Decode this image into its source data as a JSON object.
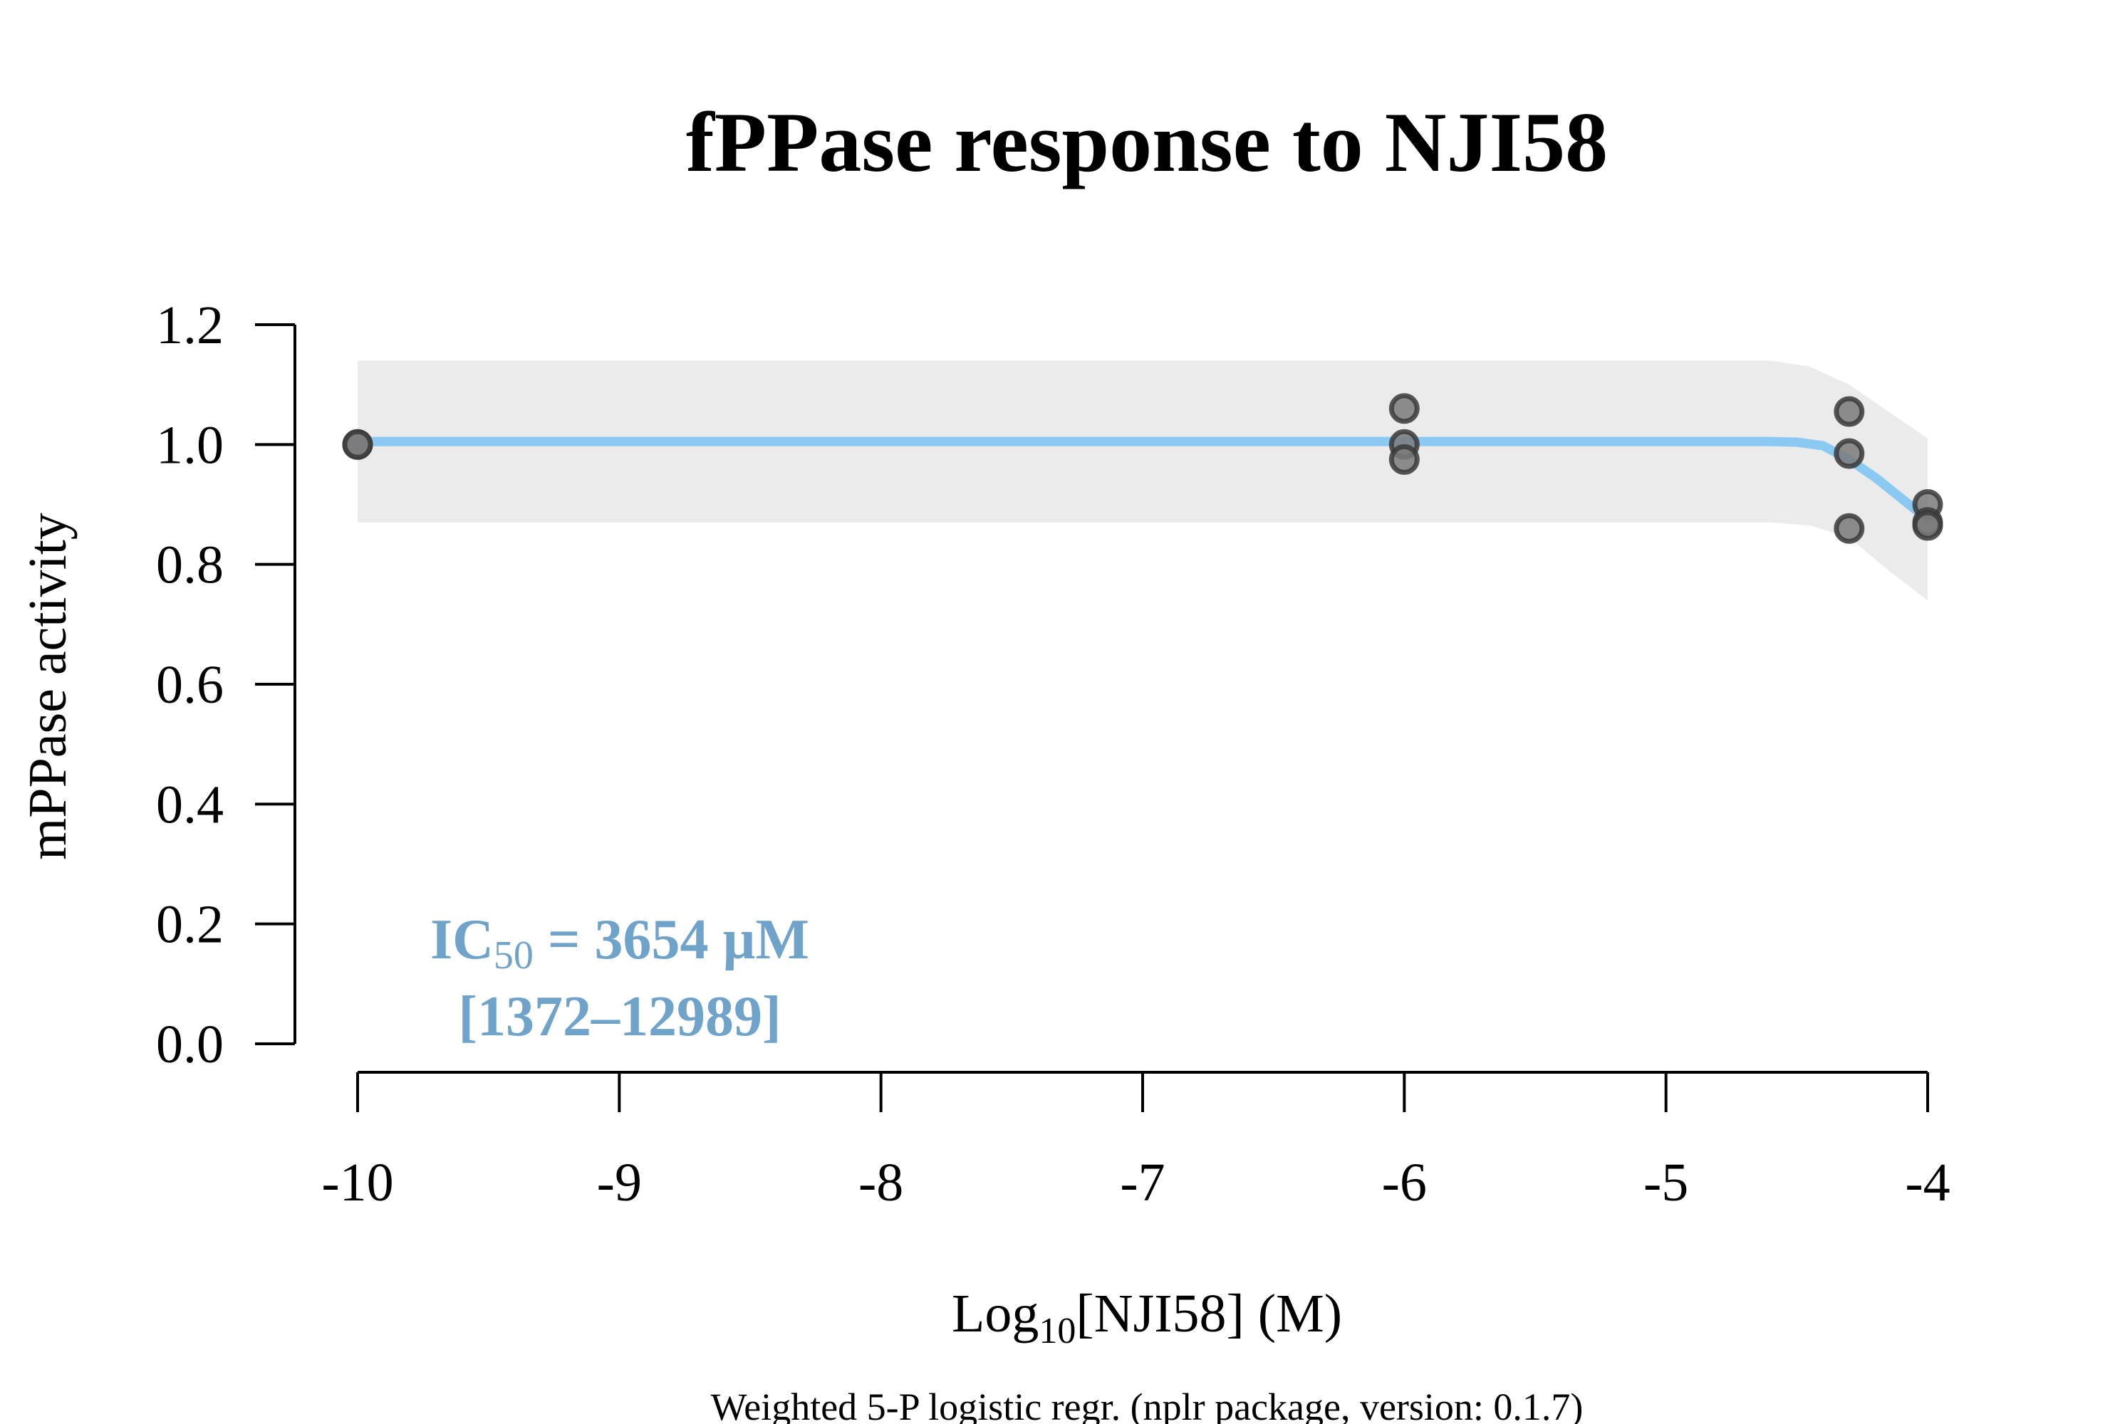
{
  "chart_data": {
    "type": "scatter",
    "title": "fPPase response to NJI58",
    "xlabel": {
      "prefix": "Log",
      "sub": "10",
      "suffix": "[NJI58] (M)"
    },
    "ylabel": "mPPase activity",
    "footnote": "Weighted 5-P logistic regr. (nplr package, version: 0.1.7)",
    "xlim": [
      -10,
      -4
    ],
    "ylim": [
      0,
      1.2
    ],
    "x_ticks": [
      -10,
      -9,
      -8,
      -7,
      -6,
      -5,
      -4
    ],
    "y_ticks": [
      0,
      0.2,
      0.4,
      0.6,
      0.8,
      1.0,
      1.2
    ],
    "x_tick_labels": [
      "-10",
      "-9",
      "-8",
      "-7",
      "-6",
      "-5",
      "-4"
    ],
    "y_tick_labels": [
      "0.0",
      "0.2",
      "0.4",
      "0.6",
      "0.8",
      "1.0",
      "1.2"
    ],
    "points": [
      {
        "x": -10,
        "y": 1.0
      },
      {
        "x": -10,
        "y": 1.0
      },
      {
        "x": -6,
        "y": 1.06
      },
      {
        "x": -6,
        "y": 1.0
      },
      {
        "x": -6,
        "y": 0.975
      },
      {
        "x": -4.3,
        "y": 1.055
      },
      {
        "x": -4.3,
        "y": 0.985
      },
      {
        "x": -4.3,
        "y": 0.86
      },
      {
        "x": -4,
        "y": 0.9
      },
      {
        "x": -4,
        "y": 0.87
      },
      {
        "x": -4,
        "y": 0.865
      }
    ],
    "fit_curve": [
      {
        "x": -10,
        "y": 1.005
      },
      {
        "x": -6,
        "y": 1.005
      },
      {
        "x": -4.6,
        "y": 1.005
      },
      {
        "x": -4.5,
        "y": 1.004
      },
      {
        "x": -4.4,
        "y": 0.998
      },
      {
        "x": -4.3,
        "y": 0.975
      },
      {
        "x": -4.2,
        "y": 0.945
      },
      {
        "x": -4.1,
        "y": 0.91
      },
      {
        "x": -4,
        "y": 0.875
      }
    ],
    "confidence_band": {
      "upper": [
        {
          "x": -10,
          "y": 1.14
        },
        {
          "x": -4.6,
          "y": 1.14
        },
        {
          "x": -4.45,
          "y": 1.13
        },
        {
          "x": -4.3,
          "y": 1.1
        },
        {
          "x": -4.15,
          "y": 1.055
        },
        {
          "x": -4,
          "y": 1.01
        }
      ],
      "lower": [
        {
          "x": -10,
          "y": 0.87
        },
        {
          "x": -4.6,
          "y": 0.87
        },
        {
          "x": -4.45,
          "y": 0.865
        },
        {
          "x": -4.3,
          "y": 0.845
        },
        {
          "x": -4.15,
          "y": 0.79
        },
        {
          "x": -4,
          "y": 0.74
        }
      ]
    },
    "annotation": {
      "ic50_prefix": "IC",
      "ic50_sub": "50",
      "ic50_value": " = 3654 µM",
      "interval": "[1372–12989]"
    },
    "colors": {
      "curve": "#89C9F2",
      "band": "#EBEBEB",
      "point_fill": "#7A7A7A",
      "point_stroke": "#3A3A3A",
      "annotation": "#6FA3CA",
      "axis": "#000000"
    }
  }
}
